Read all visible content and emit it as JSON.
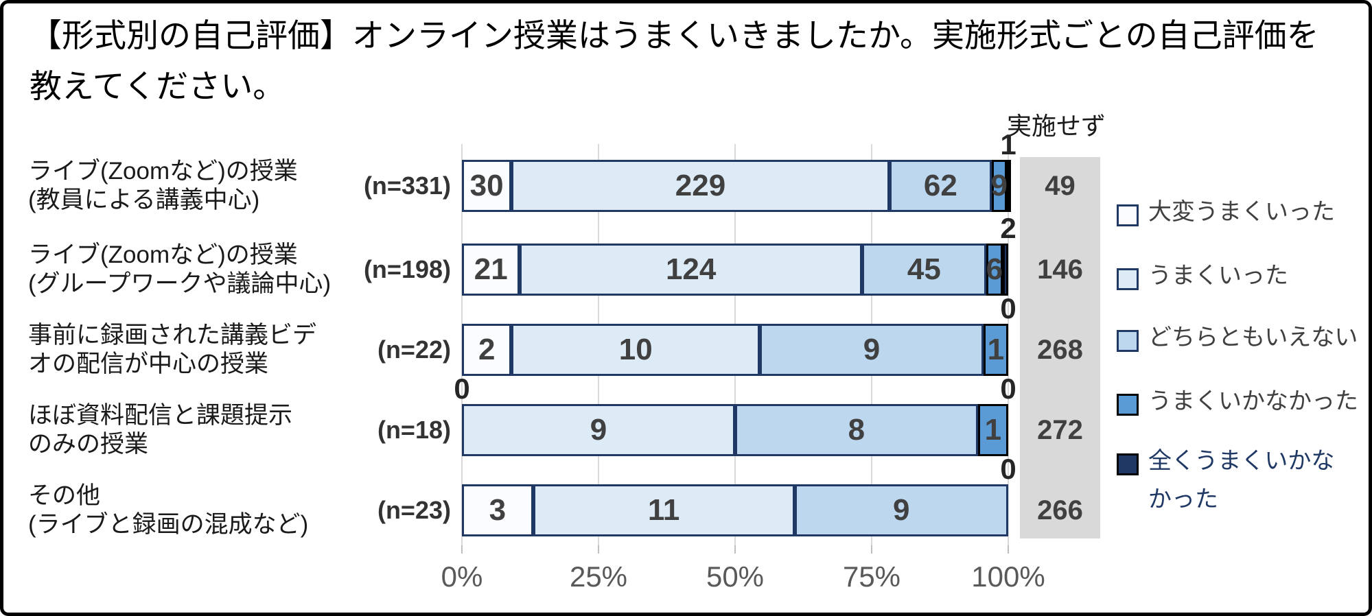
{
  "chart_data": {
    "type": "bar",
    "stacked": true,
    "orientation": "horizontal",
    "grid": true,
    "legend_position": "right",
    "title": "【形式別の自己評価】オンライン授業はうまくいきましたか。実施形式ごとの自己評価を教えてください。",
    "x_axis": {
      "ticks": [
        "0%",
        "25%",
        "50%",
        "75%",
        "100%"
      ],
      "range_percent": [
        0,
        100
      ]
    },
    "not_conducted_header": "実施せず",
    "series": [
      {
        "name": "大変うまくいった",
        "fill": "#FAFCFF",
        "border": "#1F3864"
      },
      {
        "name": "うまくいった",
        "fill": "#DDEBF7",
        "border": "#1F3864"
      },
      {
        "name": "どちらともいえない",
        "fill": "#BDD7EE",
        "border": "#1F3864"
      },
      {
        "name": "うまくいかなかった",
        "fill": "#5B9BD5",
        "border": "#000000"
      },
      {
        "name": "全くうまくいかなかった",
        "fill": "#1F3864",
        "border": "#000000"
      }
    ],
    "categories": [
      {
        "label_lines": [
          "ライブ(Zoomなど)の授業",
          "(教員による講義中心)"
        ],
        "n_label": "(n=331)",
        "n": 331,
        "values": [
          30,
          229,
          62,
          9,
          1
        ],
        "not_conducted": 49,
        "callouts": [
          {
            "pos": "right",
            "text": "1"
          }
        ]
      },
      {
        "label_lines": [
          "ライブ(Zoomなど)の授業",
          "(グループワークや議論中心)"
        ],
        "n_label": "(n=198)",
        "n": 198,
        "values": [
          21,
          124,
          45,
          6,
          2
        ],
        "not_conducted": 146,
        "callouts": [
          {
            "pos": "right",
            "text": "2"
          }
        ]
      },
      {
        "label_lines": [
          "事前に録画された講義ビデ",
          "オの配信が中心の授業"
        ],
        "n_label": "(n=22)",
        "n": 22,
        "values": [
          2,
          10,
          9,
          1,
          0
        ],
        "not_conducted": 268,
        "callouts": [
          {
            "pos": "right",
            "text": "0"
          }
        ]
      },
      {
        "label_lines": [
          "ほぼ資料配信と課題提示",
          "のみの授業"
        ],
        "n_label": "(n=18)",
        "n": 18,
        "values": [
          0,
          9,
          8,
          1,
          0
        ],
        "not_conducted": 272,
        "callouts": [
          {
            "pos": "left",
            "text": "0"
          },
          {
            "pos": "right",
            "text": "0"
          }
        ]
      },
      {
        "label_lines": [
          "その他",
          "(ライブと録画の混成など)"
        ],
        "n_label": "(n=23)",
        "n": 23,
        "values": [
          3,
          11,
          9,
          0,
          0
        ],
        "not_conducted": 266,
        "callouts": [
          {
            "pos": "right",
            "text": "0"
          }
        ]
      }
    ],
    "legend": [
      {
        "label": "大変うまくいった",
        "fill": "#FAFCFF",
        "border": "#1F3864",
        "text_color": "#404040"
      },
      {
        "label": "うまくいった",
        "fill": "#DDEBF7",
        "border": "#1F3864",
        "text_color": "#404040"
      },
      {
        "label": "どちらともいえない",
        "fill": "#BDD7EE",
        "border": "#1F3864",
        "text_color": "#404040"
      },
      {
        "label": "うまくいかなかった",
        "fill": "#5B9BD5",
        "border": "#000000",
        "text_color": "#404040"
      },
      {
        "label": "全くうまくいかな\nかった",
        "fill": "#1F3864",
        "border": "#000000",
        "text_color": "#1F3864"
      }
    ],
    "colors": {
      "grid": "#D9D9D9",
      "axis_text": "#595959",
      "value_text": "#404040",
      "not_conducted_bg": "#D9D9D9"
    }
  }
}
